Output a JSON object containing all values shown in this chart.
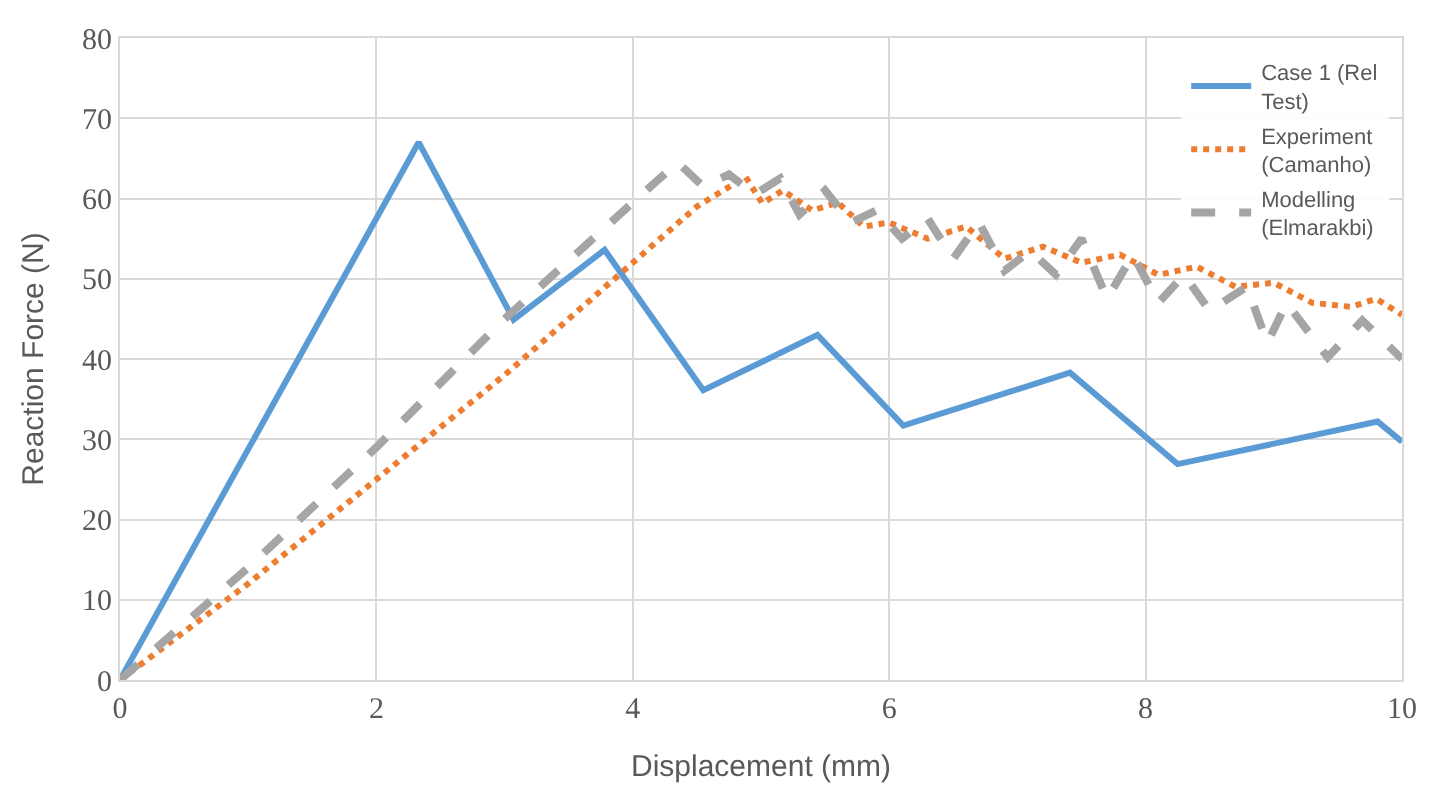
{
  "chart_data": {
    "type": "line",
    "xlabel": "Displacement (mm)",
    "ylabel": "Reaction Force (N)",
    "xlim": [
      0,
      10
    ],
    "xticks": [
      0,
      2,
      4,
      6,
      8,
      10
    ],
    "ylim": [
      0,
      80
    ],
    "yticks": [
      0,
      10,
      20,
      30,
      40,
      50,
      60,
      70,
      80
    ],
    "grid": true,
    "legend": "top right",
    "series": [
      {
        "name": "Case 1 (Rel Test)",
        "color": "#5b9bd5",
        "line_style": "solid",
        "x": [
          0,
          2.33,
          3.07,
          3.78,
          4.55,
          5.44,
          6.11,
          7.41,
          8.25,
          9.81,
          10
        ],
        "values": [
          0,
          67,
          44.9,
          53.6,
          36.1,
          43,
          31.7,
          38.3,
          26.9,
          32.2,
          29.7
        ]
      },
      {
        "name": "Experiment (Camanho)",
        "color": "#ed7d31",
        "line_style": "dotted",
        "x": [
          0,
          1,
          2,
          3,
          4,
          4.5,
          4.88,
          5.01,
          5.17,
          5.4,
          5.6,
          5.8,
          6.0,
          6.3,
          6.6,
          6.9,
          7.2,
          7.5,
          7.8,
          8.1,
          8.4,
          8.7,
          9.0,
          9.3,
          9.6,
          9.8,
          10
        ],
        "values": [
          0,
          12,
          25,
          38,
          52,
          59,
          62.7,
          59.4,
          61,
          58.5,
          59.5,
          56.5,
          57,
          55,
          56.5,
          52.5,
          54,
          52,
          53,
          50.5,
          51.5,
          49,
          49.5,
          47,
          46.5,
          47.5,
          45.5
        ]
      },
      {
        "name": "Modelling (Elmarakbi)",
        "color": "#a5a5a5",
        "line_style": "dashed",
        "x": [
          0,
          1,
          2,
          3,
          4,
          4.35,
          4.55,
          4.75,
          4.95,
          5.15,
          5.3,
          5.5,
          5.7,
          5.9,
          6.1,
          6.3,
          6.5,
          6.7,
          6.9,
          7.1,
          7.3,
          7.5,
          7.7,
          7.9,
          8.1,
          8.3,
          8.5,
          8.79,
          8.95,
          9.1,
          9.42,
          9.69,
          10
        ],
        "values": [
          0,
          14,
          29,
          45,
          59.5,
          64.5,
          61.5,
          63,
          60.5,
          62.5,
          58,
          61,
          57,
          58.5,
          55,
          57.5,
          52.5,
          57,
          51,
          53.5,
          50.5,
          55,
          47.5,
          53,
          47,
          50.5,
          46,
          49,
          42,
          47,
          40.2,
          44.8,
          40
        ]
      }
    ]
  }
}
